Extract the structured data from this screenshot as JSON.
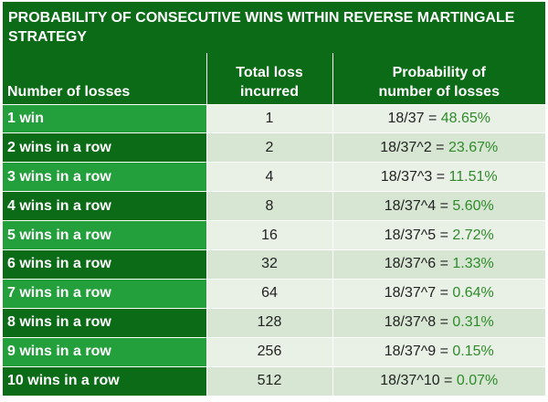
{
  "title": "PROBABILITY OF CONSECUTIVE WINS WITHIN REVERSE MARTINGALE STRATEGY",
  "headers": {
    "col1": "Number of losses",
    "col2_line1": "Total loss",
    "col2_line2": "incurred",
    "col3_line1": "Probability of",
    "col3_line2": "number of losses"
  },
  "rows": [
    {
      "label": "1 win",
      "loss": "1",
      "formula": "18/37 =",
      "pct": "48.65%"
    },
    {
      "label": "2 wins in a row",
      "loss": "2",
      "formula": "18/37^2 =",
      "pct": "23.67%"
    },
    {
      "label": "3 wins in a row",
      "loss": "4",
      "formula": "18/37^3 =",
      "pct": "11.51%"
    },
    {
      "label": "4 wins in a row",
      "loss": "8",
      "formula": "18/37^4 =",
      "pct": "5.60%"
    },
    {
      "label": "5 wins in a row",
      "loss": "16",
      "formula": "18/37^5 =",
      "pct": "2.72%"
    },
    {
      "label": "6 wins in a row",
      "loss": "32",
      "formula": "18/37^6 =",
      "pct": "1.33%"
    },
    {
      "label": "7 wins in a row",
      "loss": "64",
      "formula": "18/37^7 =",
      "pct": "0.64%"
    },
    {
      "label": "8 wins in a row",
      "loss": "128",
      "formula": "18/37^8 =",
      "pct": "0.31%"
    },
    {
      "label": "9 wins in a row",
      "loss": "256",
      "formula": "18/37^9 =",
      "pct": "0.15%"
    },
    {
      "label": "10 wins in a row",
      "loss": "512",
      "formula": "18/37^10 =",
      "pct": "0.07%"
    }
  ],
  "colors": {
    "dark_green": "#0b6b16",
    "mid_green": "#239f3c",
    "row_light": "#e9f1e7",
    "row_alt": "#d6e6d2",
    "percent_text": "#2f8a2a"
  }
}
